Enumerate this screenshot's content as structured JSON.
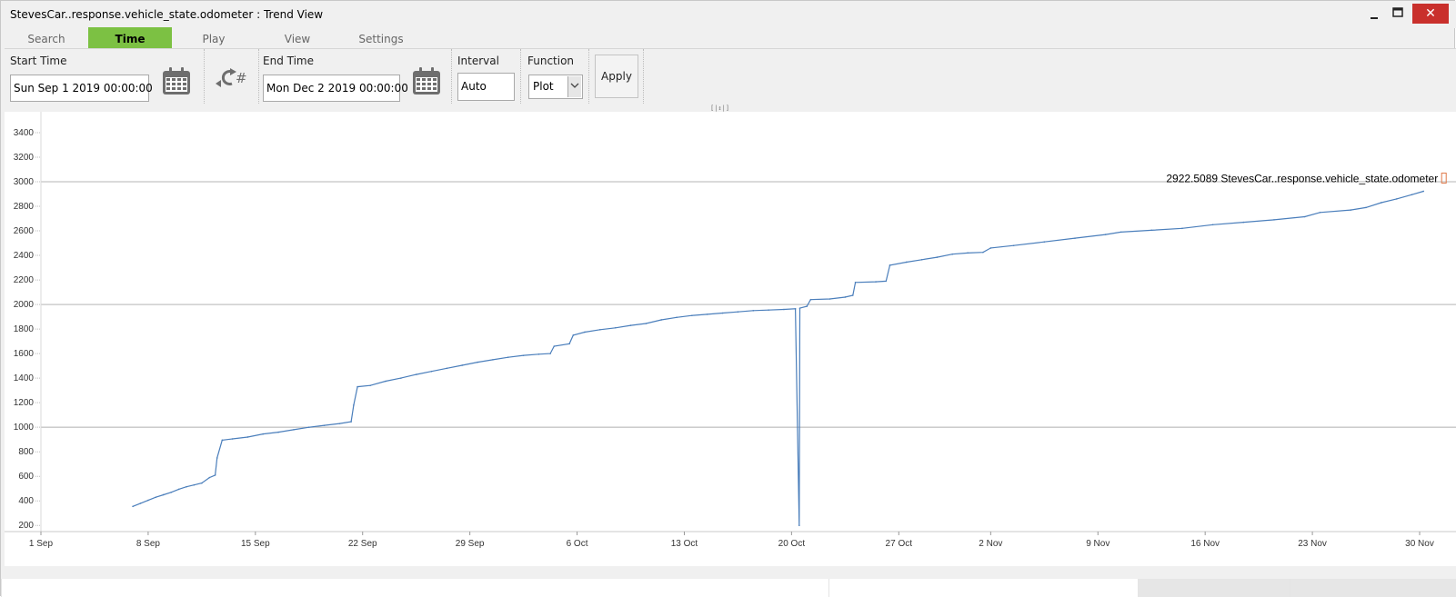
{
  "window": {
    "title": "StevesCar..response.vehicle_state.odometer : Trend View",
    "minimize_icon": "minimize-icon",
    "maximize_icon": "maximize-icon",
    "close_icon": "close-icon",
    "close_glyph": "✕",
    "close_color": "#c9302c"
  },
  "tabs": [
    {
      "label": "Search",
      "active": false
    },
    {
      "label": "Time",
      "active": true
    },
    {
      "label": "Play",
      "active": false
    },
    {
      "label": "View",
      "active": false
    },
    {
      "label": "Settings",
      "active": false
    }
  ],
  "toolbar": {
    "start_time_label": "Start Time",
    "start_time_value": "Sun Sep 1 2019  00:00:00",
    "end_time_label": "End Time",
    "end_time_value": "Mon Dec 2 2019  00:00:00",
    "interval_label": "Interval",
    "interval_value": "Auto",
    "function_label": "Function",
    "function_value": "Plot",
    "apply_label": "Apply",
    "refresh_hash": "#",
    "calendar_icon": "calendar-icon",
    "refresh_icon": "refresh-icon",
    "accent_color": "#7cc143"
  },
  "chart_data": {
    "type": "line",
    "title": "",
    "xlabel": "",
    "ylabel": "",
    "series": [
      {
        "name": "StevesCar..response.vehicle_state.odometer",
        "color": "#4a7ebb",
        "points": [
          [
            "2019-09-07 00:00",
            355
          ],
          [
            "2019-09-07 12:00",
            380
          ],
          [
            "2019-09-08 00:00",
            405
          ],
          [
            "2019-09-08 12:00",
            430
          ],
          [
            "2019-09-09 00:00",
            450
          ],
          [
            "2019-09-09 12:00",
            470
          ],
          [
            "2019-09-10 00:00",
            495
          ],
          [
            "2019-09-10 12:00",
            515
          ],
          [
            "2019-09-11 00:00",
            530
          ],
          [
            "2019-09-11 12:00",
            545
          ],
          [
            "2019-09-12 00:00",
            590
          ],
          [
            "2019-09-12 09:00",
            610
          ],
          [
            "2019-09-12 12:00",
            750
          ],
          [
            "2019-09-12 20:00",
            895
          ],
          [
            "2019-09-13 12:00",
            905
          ],
          [
            "2019-09-14 12:00",
            920
          ],
          [
            "2019-09-15 12:00",
            945
          ],
          [
            "2019-09-16 12:00",
            960
          ],
          [
            "2019-09-17 12:00",
            980
          ],
          [
            "2019-09-18 12:00",
            1000
          ],
          [
            "2019-09-19 12:00",
            1015
          ],
          [
            "2019-09-20 12:00",
            1030
          ],
          [
            "2019-09-21 06:00",
            1045
          ],
          [
            "2019-09-21 10:00",
            1180
          ],
          [
            "2019-09-21 16:00",
            1330
          ],
          [
            "2019-09-22 12:00",
            1340
          ],
          [
            "2019-09-23 12:00",
            1375
          ],
          [
            "2019-09-24 12:00",
            1400
          ],
          [
            "2019-09-25 12:00",
            1430
          ],
          [
            "2019-09-26 12:00",
            1455
          ],
          [
            "2019-09-27 12:00",
            1480
          ],
          [
            "2019-09-28 12:00",
            1505
          ],
          [
            "2019-09-29 12:00",
            1530
          ],
          [
            "2019-09-30 12:00",
            1550
          ],
          [
            "2019-10-01 12:00",
            1570
          ],
          [
            "2019-10-02 12:00",
            1585
          ],
          [
            "2019-10-03 12:00",
            1595
          ],
          [
            "2019-10-04 06:00",
            1600
          ],
          [
            "2019-10-04 12:00",
            1660
          ],
          [
            "2019-10-05 12:00",
            1680
          ],
          [
            "2019-10-05 18:00",
            1750
          ],
          [
            "2019-10-06 12:00",
            1775
          ],
          [
            "2019-10-07 12:00",
            1795
          ],
          [
            "2019-10-08 12:00",
            1810
          ],
          [
            "2019-10-09 12:00",
            1830
          ],
          [
            "2019-10-10 12:00",
            1845
          ],
          [
            "2019-10-11 12:00",
            1875
          ],
          [
            "2019-10-12 12:00",
            1895
          ],
          [
            "2019-10-13 12:00",
            1910
          ],
          [
            "2019-10-14 12:00",
            1920
          ],
          [
            "2019-10-15 12:00",
            1930
          ],
          [
            "2019-10-16 12:00",
            1940
          ],
          [
            "2019-10-17 12:00",
            1950
          ],
          [
            "2019-10-18 12:00",
            1955
          ],
          [
            "2019-10-19 12:00",
            1960
          ],
          [
            "2019-10-20 06:00",
            1965
          ],
          [
            "2019-10-20 12:00",
            200
          ],
          [
            "2019-10-20 13:00",
            1970
          ],
          [
            "2019-10-21 00:00",
            1985
          ],
          [
            "2019-10-21 06:00",
            2040
          ],
          [
            "2019-10-22 12:00",
            2045
          ],
          [
            "2019-10-23 12:00",
            2060
          ],
          [
            "2019-10-24 00:00",
            2075
          ],
          [
            "2019-10-24 04:00",
            2180
          ],
          [
            "2019-10-25 12:00",
            2185
          ],
          [
            "2019-10-26 04:00",
            2190
          ],
          [
            "2019-10-26 10:00",
            2320
          ],
          [
            "2019-10-27 12:00",
            2345
          ],
          [
            "2019-10-28 12:00",
            2365
          ],
          [
            "2019-10-29 12:00",
            2385
          ],
          [
            "2019-10-30 12:00",
            2410
          ],
          [
            "2019-10-31 12:00",
            2420
          ],
          [
            "2019-11-01 12:00",
            2425
          ],
          [
            "2019-11-02 00:00",
            2460
          ],
          [
            "2019-11-03 12:00",
            2480
          ],
          [
            "2019-11-05 12:00",
            2510
          ],
          [
            "2019-11-07 12:00",
            2540
          ],
          [
            "2019-11-09 12:00",
            2570
          ],
          [
            "2019-11-10 12:00",
            2590
          ],
          [
            "2019-11-12 12:00",
            2605
          ],
          [
            "2019-11-14 12:00",
            2620
          ],
          [
            "2019-11-16 12:00",
            2650
          ],
          [
            "2019-11-18 12:00",
            2670
          ],
          [
            "2019-11-20 12:00",
            2690
          ],
          [
            "2019-11-22 12:00",
            2715
          ],
          [
            "2019-11-23 12:00",
            2750
          ],
          [
            "2019-11-25 12:00",
            2770
          ],
          [
            "2019-11-26 12:00",
            2790
          ],
          [
            "2019-11-27 12:00",
            2830
          ],
          [
            "2019-11-28 12:00",
            2860
          ],
          [
            "2019-11-29 12:00",
            2895
          ],
          [
            "2019-11-30 06:00",
            2922.5089
          ]
        ]
      }
    ],
    "last_value_label": "2922.5089 StevesCar..response.vehicle_state.odometer",
    "x_range": [
      "2019-09-01 00:00",
      "2019-11-30 00:00"
    ],
    "x_ticks": [
      {
        "label": "1 Sep",
        "date": "2019-09-01"
      },
      {
        "label": "8 Sep",
        "date": "2019-09-08"
      },
      {
        "label": "15 Sep",
        "date": "2019-09-15"
      },
      {
        "label": "22 Sep",
        "date": "2019-09-22"
      },
      {
        "label": "29 Sep",
        "date": "2019-09-29"
      },
      {
        "label": "6 Oct",
        "date": "2019-10-06"
      },
      {
        "label": "13 Oct",
        "date": "2019-10-13"
      },
      {
        "label": "20 Oct",
        "date": "2019-10-20"
      },
      {
        "label": "27 Oct",
        "date": "2019-10-27"
      },
      {
        "label": "2 Nov",
        "date": "2019-11-02"
      },
      {
        "label": "9 Nov",
        "date": "2019-11-09"
      },
      {
        "label": "16 Nov",
        "date": "2019-11-16"
      },
      {
        "label": "23 Nov",
        "date": "2019-11-23"
      },
      {
        "label": "30 Nov",
        "date": "2019-11-30"
      }
    ],
    "y_range": [
      150,
      3570
    ],
    "y_ticks": [
      200,
      400,
      600,
      800,
      1000,
      1200,
      1400,
      1600,
      1800,
      2000,
      2200,
      2400,
      2600,
      2800,
      3000,
      3200,
      3400
    ],
    "y_major_gridlines": [
      1000,
      2000,
      3000
    ],
    "grid": "horizontal at 1000, 2000, 3000",
    "legend": "inline at top-right of series end"
  }
}
